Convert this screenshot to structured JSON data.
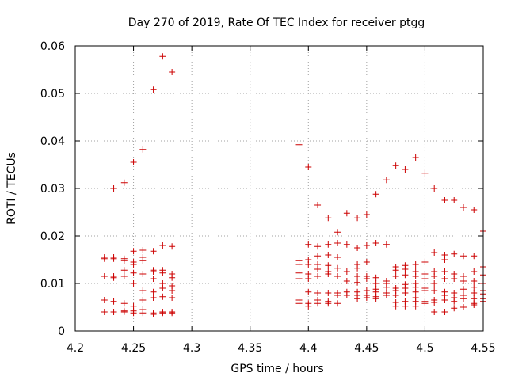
{
  "chart_data": {
    "type": "scatter",
    "title": "Day 270 of 2019, Rate Of TEC Index for receiver ptgg",
    "xlabel": "GPS time / hours",
    "ylabel": "ROTI / TECUs",
    "xlim": [
      4.2,
      4.55
    ],
    "ylim": [
      0,
      0.06
    ],
    "x_ticks": [
      4.2,
      4.25,
      4.3,
      4.35,
      4.4,
      4.45,
      4.5,
      4.55
    ],
    "x_tick_labels": [
      "4.2",
      "4.25",
      "4.3",
      "4.35",
      "4.4",
      "4.45",
      "4.5",
      "4.55"
    ],
    "y_ticks": [
      0,
      0.01,
      0.02,
      0.03,
      0.04,
      0.05,
      0.06
    ],
    "y_tick_labels": [
      "0",
      "0.01",
      "0.02",
      "0.03",
      "0.04",
      "0.05",
      "0.06"
    ],
    "grid": true,
    "marker": "+",
    "color": "#cc0000",
    "series": [
      {
        "name": "ROTI",
        "points": [
          [
            4.225,
            0.0155
          ],
          [
            4.225,
            0.0152
          ],
          [
            4.225,
            0.0115
          ],
          [
            4.225,
            0.0065
          ],
          [
            4.225,
            0.004
          ],
          [
            4.233,
            0.0155
          ],
          [
            4.233,
            0.0152
          ],
          [
            4.233,
            0.0115
          ],
          [
            4.233,
            0.0112
          ],
          [
            4.233,
            0.0062
          ],
          [
            4.233,
            0.004
          ],
          [
            4.233,
            0.03
          ],
          [
            4.242,
            0.0152
          ],
          [
            4.242,
            0.0148
          ],
          [
            4.242,
            0.0128
          ],
          [
            4.242,
            0.0115
          ],
          [
            4.242,
            0.0058
          ],
          [
            4.242,
            0.0042
          ],
          [
            4.242,
            0.004
          ],
          [
            4.242,
            0.0312
          ],
          [
            4.25,
            0.0168
          ],
          [
            4.25,
            0.0145
          ],
          [
            4.25,
            0.014
          ],
          [
            4.25,
            0.0122
          ],
          [
            4.25,
            0.01
          ],
          [
            4.25,
            0.0052
          ],
          [
            4.25,
            0.0042
          ],
          [
            4.25,
            0.0038
          ],
          [
            4.25,
            0.0355
          ],
          [
            4.258,
            0.017
          ],
          [
            4.258,
            0.0155
          ],
          [
            4.258,
            0.0148
          ],
          [
            4.258,
            0.012
          ],
          [
            4.258,
            0.0085
          ],
          [
            4.258,
            0.0065
          ],
          [
            4.258,
            0.0045
          ],
          [
            4.258,
            0.0038
          ],
          [
            4.258,
            0.0382
          ],
          [
            4.267,
            0.0168
          ],
          [
            4.267,
            0.0128
          ],
          [
            4.267,
            0.0125
          ],
          [
            4.267,
            0.011
          ],
          [
            4.267,
            0.0082
          ],
          [
            4.267,
            0.007
          ],
          [
            4.267,
            0.0038
          ],
          [
            4.267,
            0.0035
          ],
          [
            4.267,
            0.0508
          ],
          [
            4.275,
            0.018
          ],
          [
            4.275,
            0.0128
          ],
          [
            4.275,
            0.0122
          ],
          [
            4.275,
            0.01
          ],
          [
            4.275,
            0.009
          ],
          [
            4.275,
            0.0072
          ],
          [
            4.275,
            0.004
          ],
          [
            4.275,
            0.0038
          ],
          [
            4.275,
            0.0578
          ],
          [
            4.283,
            0.0178
          ],
          [
            4.283,
            0.012
          ],
          [
            4.283,
            0.0112
          ],
          [
            4.283,
            0.0095
          ],
          [
            4.283,
            0.0085
          ],
          [
            4.283,
            0.007
          ],
          [
            4.283,
            0.004
          ],
          [
            4.283,
            0.0038
          ],
          [
            4.283,
            0.0545
          ],
          [
            4.392,
            0.0392
          ],
          [
            4.392,
            0.0148
          ],
          [
            4.392,
            0.014
          ],
          [
            4.392,
            0.0122
          ],
          [
            4.392,
            0.011
          ],
          [
            4.392,
            0.0065
          ],
          [
            4.392,
            0.0058
          ],
          [
            4.4,
            0.0345
          ],
          [
            4.4,
            0.0182
          ],
          [
            4.4,
            0.015
          ],
          [
            4.4,
            0.014
          ],
          [
            4.4,
            0.012
          ],
          [
            4.4,
            0.011
          ],
          [
            4.4,
            0.0082
          ],
          [
            4.4,
            0.0058
          ],
          [
            4.4,
            0.0052
          ],
          [
            4.408,
            0.0265
          ],
          [
            4.408,
            0.0178
          ],
          [
            4.408,
            0.0158
          ],
          [
            4.408,
            0.014
          ],
          [
            4.408,
            0.013
          ],
          [
            4.408,
            0.0115
          ],
          [
            4.408,
            0.008
          ],
          [
            4.408,
            0.0065
          ],
          [
            4.408,
            0.0058
          ],
          [
            4.417,
            0.0238
          ],
          [
            4.417,
            0.0182
          ],
          [
            4.417,
            0.016
          ],
          [
            4.417,
            0.0138
          ],
          [
            4.417,
            0.0125
          ],
          [
            4.417,
            0.012
          ],
          [
            4.417,
            0.008
          ],
          [
            4.417,
            0.0062
          ],
          [
            4.417,
            0.0058
          ],
          [
            4.425,
            0.0208
          ],
          [
            4.425,
            0.0185
          ],
          [
            4.425,
            0.0155
          ],
          [
            4.425,
            0.0132
          ],
          [
            4.425,
            0.0115
          ],
          [
            4.425,
            0.008
          ],
          [
            4.425,
            0.0075
          ],
          [
            4.425,
            0.0058
          ],
          [
            4.433,
            0.0248
          ],
          [
            4.433,
            0.0182
          ],
          [
            4.433,
            0.0125
          ],
          [
            4.433,
            0.0105
          ],
          [
            4.433,
            0.0082
          ],
          [
            4.433,
            0.0075
          ],
          [
            4.442,
            0.0238
          ],
          [
            4.442,
            0.0175
          ],
          [
            4.442,
            0.014
          ],
          [
            4.442,
            0.0132
          ],
          [
            4.442,
            0.0115
          ],
          [
            4.442,
            0.0102
          ],
          [
            4.442,
            0.0082
          ],
          [
            4.442,
            0.0075
          ],
          [
            4.442,
            0.0068
          ],
          [
            4.45,
            0.0245
          ],
          [
            4.45,
            0.018
          ],
          [
            4.45,
            0.0145
          ],
          [
            4.45,
            0.0115
          ],
          [
            4.45,
            0.011
          ],
          [
            4.45,
            0.0085
          ],
          [
            4.45,
            0.0075
          ],
          [
            4.45,
            0.007
          ],
          [
            4.458,
            0.0288
          ],
          [
            4.458,
            0.0185
          ],
          [
            4.458,
            0.0112
          ],
          [
            4.458,
            0.01
          ],
          [
            4.458,
            0.0088
          ],
          [
            4.458,
            0.0082
          ],
          [
            4.458,
            0.0072
          ],
          [
            4.458,
            0.0068
          ],
          [
            4.467,
            0.0318
          ],
          [
            4.467,
            0.0182
          ],
          [
            4.467,
            0.0105
          ],
          [
            4.467,
            0.01
          ],
          [
            4.467,
            0.0092
          ],
          [
            4.467,
            0.008
          ],
          [
            4.467,
            0.0075
          ],
          [
            4.475,
            0.0348
          ],
          [
            4.475,
            0.0135
          ],
          [
            4.475,
            0.0128
          ],
          [
            4.475,
            0.0115
          ],
          [
            4.475,
            0.009
          ],
          [
            4.475,
            0.0085
          ],
          [
            4.475,
            0.0075
          ],
          [
            4.475,
            0.006
          ],
          [
            4.475,
            0.0052
          ],
          [
            4.483,
            0.034
          ],
          [
            4.483,
            0.0138
          ],
          [
            4.483,
            0.013
          ],
          [
            4.483,
            0.0118
          ],
          [
            4.483,
            0.0098
          ],
          [
            4.483,
            0.009
          ],
          [
            4.483,
            0.008
          ],
          [
            4.483,
            0.0062
          ],
          [
            4.483,
            0.0052
          ],
          [
            4.492,
            0.0365
          ],
          [
            4.492,
            0.014
          ],
          [
            4.492,
            0.0125
          ],
          [
            4.492,
            0.0115
          ],
          [
            4.492,
            0.01
          ],
          [
            4.492,
            0.0092
          ],
          [
            4.492,
            0.0082
          ],
          [
            4.492,
            0.007
          ],
          [
            4.492,
            0.0062
          ],
          [
            4.492,
            0.0052
          ],
          [
            4.5,
            0.0332
          ],
          [
            4.5,
            0.0145
          ],
          [
            4.5,
            0.012
          ],
          [
            4.5,
            0.011
          ],
          [
            4.5,
            0.009
          ],
          [
            4.5,
            0.0085
          ],
          [
            4.5,
            0.0062
          ],
          [
            4.5,
            0.0058
          ],
          [
            4.508,
            0.03
          ],
          [
            4.508,
            0.0165
          ],
          [
            4.508,
            0.0125
          ],
          [
            4.508,
            0.0115
          ],
          [
            4.508,
            0.01
          ],
          [
            4.508,
            0.0085
          ],
          [
            4.508,
            0.0065
          ],
          [
            4.508,
            0.006
          ],
          [
            4.508,
            0.004
          ],
          [
            4.517,
            0.0275
          ],
          [
            4.517,
            0.016
          ],
          [
            4.517,
            0.015
          ],
          [
            4.517,
            0.0125
          ],
          [
            4.517,
            0.011
          ],
          [
            4.517,
            0.0082
          ],
          [
            4.517,
            0.0075
          ],
          [
            4.517,
            0.0065
          ],
          [
            4.517,
            0.004
          ],
          [
            4.525,
            0.0275
          ],
          [
            4.525,
            0.0162
          ],
          [
            4.525,
            0.012
          ],
          [
            4.525,
            0.011
          ],
          [
            4.525,
            0.008
          ],
          [
            4.525,
            0.007
          ],
          [
            4.525,
            0.0062
          ],
          [
            4.525,
            0.0048
          ],
          [
            4.533,
            0.026
          ],
          [
            4.533,
            0.0158
          ],
          [
            4.533,
            0.0115
          ],
          [
            4.533,
            0.0105
          ],
          [
            4.533,
            0.0088
          ],
          [
            4.533,
            0.0075
          ],
          [
            4.533,
            0.0068
          ],
          [
            4.533,
            0.005
          ],
          [
            4.542,
            0.0255
          ],
          [
            4.542,
            0.0158
          ],
          [
            4.542,
            0.0125
          ],
          [
            4.542,
            0.0105
          ],
          [
            4.542,
            0.0092
          ],
          [
            4.542,
            0.008
          ],
          [
            4.542,
            0.0068
          ],
          [
            4.542,
            0.0058
          ],
          [
            4.542,
            0.0055
          ],
          [
            4.55,
            0.021
          ],
          [
            4.55,
            0.0135
          ],
          [
            4.55,
            0.0118
          ],
          [
            4.55,
            0.01
          ],
          [
            4.55,
            0.0085
          ],
          [
            4.55,
            0.0078
          ],
          [
            4.55,
            0.0068
          ],
          [
            4.55,
            0.0062
          ]
        ]
      }
    ]
  }
}
